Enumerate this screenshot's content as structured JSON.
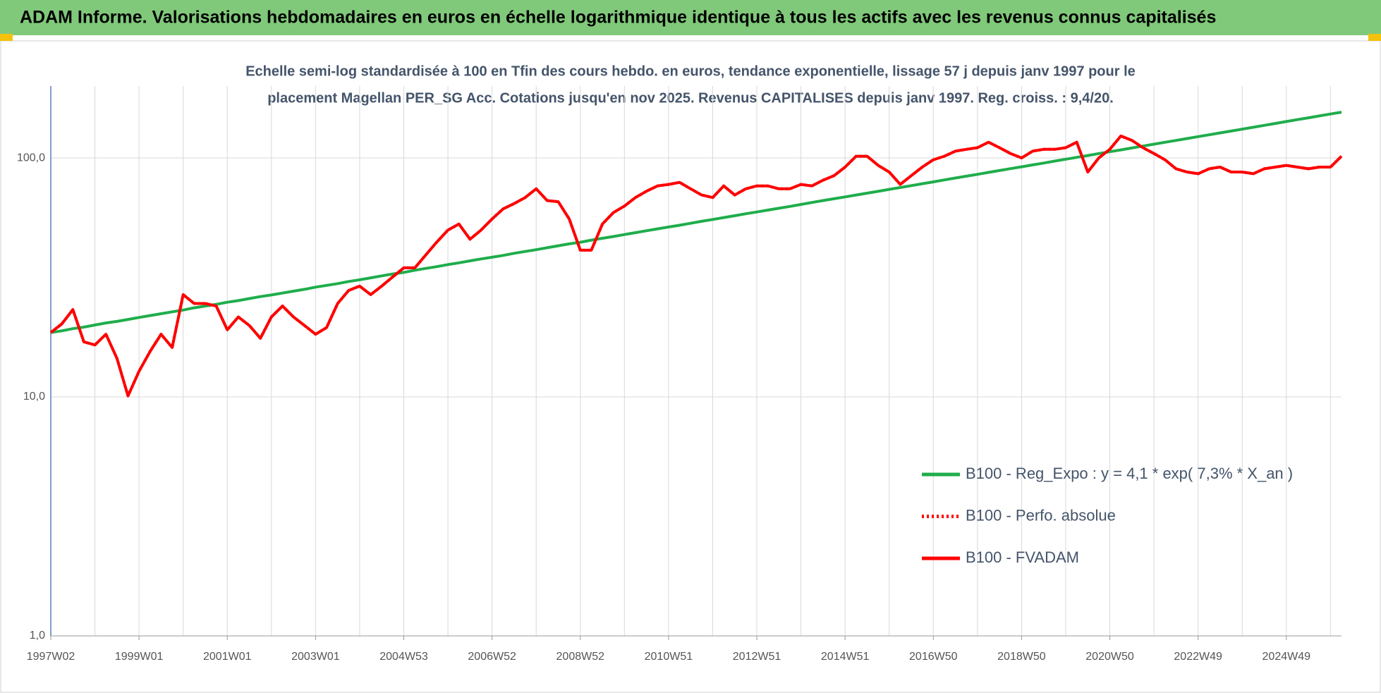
{
  "chart_data": {
    "type": "line",
    "title": "ADAM Informe. Valorisations hebdomadaires en euros en échelle logarithmique identique à tous les actifs avec les revenus connus capitalisés",
    "subtitle": [
      "Echelle semi-log standardisée à 100 en Tfin des cours hebdo. en euros, tendance exponentielle, lissage 57 j depuis janv 1997 pour le",
      "placement Magellan PER_SG Acc. Cotations jusqu'en nov 2025. Revenus CAPITALISES depuis janv 1997. Reg. croiss. : 9,4/20."
    ],
    "log_scale": true,
    "grid": true,
    "legend": "right",
    "ylim": [
      1,
      200
    ],
    "yticks": [
      {
        "value": 1,
        "label": "1,0"
      },
      {
        "value": 10,
        "label": "10,0"
      },
      {
        "value": 100,
        "label": "100,0"
      }
    ],
    "categories": [
      "1997W02",
      null,
      null,
      null,
      null,
      null,
      null,
      null,
      "1999W01",
      null,
      null,
      null,
      null,
      null,
      null,
      null,
      "2001W01",
      null,
      null,
      null,
      null,
      null,
      null,
      null,
      "2003W01",
      null,
      null,
      null,
      null,
      null,
      null,
      null,
      "2004W53",
      null,
      null,
      null,
      null,
      null,
      null,
      null,
      "2006W52",
      null,
      null,
      null,
      null,
      null,
      null,
      null,
      "2008W52",
      null,
      null,
      null,
      null,
      null,
      null,
      null,
      "2010W51",
      null,
      null,
      null,
      null,
      null,
      null,
      null,
      "2012W51",
      null,
      null,
      null,
      null,
      null,
      null,
      null,
      "2014W51",
      null,
      null,
      null,
      null,
      null,
      null,
      null,
      "2016W50",
      null,
      null,
      null,
      null,
      null,
      null,
      null,
      "2018W50",
      null,
      null,
      null,
      null,
      null,
      null,
      null,
      "2020W50",
      null,
      null,
      null,
      null,
      null,
      null,
      null,
      "2022W49",
      null,
      null,
      null,
      null,
      null,
      null,
      null,
      "2024W49",
      null,
      null,
      null,
      null,
      null
    ],
    "series": [
      {
        "name": "B100 - Reg_Expo : y = 4,1 * exp( 7,3% *  X_an )",
        "color": "#1fad4b",
        "style": "solid",
        "values": [
          18.6,
          18.9,
          19.3,
          19.6,
          20.0,
          20.4,
          20.7,
          21.1,
          21.5,
          21.9,
          22.3,
          22.7,
          23.1,
          23.6,
          24.0,
          24.4,
          24.9,
          25.3,
          25.8,
          26.3,
          26.7,
          27.2,
          27.7,
          28.2,
          28.8,
          29.3,
          29.8,
          30.4,
          30.9,
          31.5,
          32.1,
          32.7,
          33.2,
          33.9,
          34.5,
          35.1,
          35.8,
          36.4,
          37.1,
          37.8,
          38.4,
          39.1,
          39.9,
          40.6,
          41.3,
          42.1,
          42.9,
          43.7,
          44.4,
          45.3,
          46.1,
          46.9,
          47.8,
          48.7,
          49.6,
          50.5,
          51.4,
          52.3,
          53.3,
          54.3,
          55.3,
          56.3,
          57.3,
          58.4,
          59.4,
          60.5,
          61.6,
          62.7,
          63.9,
          65.1,
          66.3,
          67.5,
          68.7,
          70.0,
          71.2,
          72.5,
          73.9,
          75.2,
          76.6,
          78.0,
          79.4,
          80.9,
          82.4,
          83.9,
          85.4,
          87.0,
          88.6,
          90.2,
          91.8,
          93.5,
          95.2,
          97.0,
          98.8,
          100.6,
          102.4,
          104.3,
          106.2,
          108.1,
          110.1,
          112.1,
          114.2,
          116.3,
          118.4,
          120.6,
          122.8,
          125.0,
          127.3,
          129.6,
          132.0,
          134.4,
          136.9,
          139.4,
          142.0,
          144.6,
          147.2,
          149.9,
          152.7,
          155.5
        ]
      },
      {
        "name": "B100 - Perfo. absolue",
        "color": "#ff0000",
        "style": "dotted",
        "values": [
          18.6,
          20.2,
          23.2,
          17.0,
          16.5,
          18.3,
          14.5,
          10.1,
          12.8,
          15.5,
          18.3,
          16.1,
          26.8,
          24.6,
          24.6,
          24.0,
          19.1,
          21.6,
          19.9,
          17.6,
          21.6,
          24.0,
          21.6,
          19.9,
          18.3,
          19.5,
          24.6,
          27.9,
          29.1,
          26.8,
          29.1,
          31.8,
          34.7,
          34.7,
          39.3,
          44.5,
          49.9,
          52.9,
          45.7,
          49.9,
          55.5,
          61.2,
          64.4,
          68.3,
          74.3,
          66.3,
          65.6,
          55.5,
          41.1,
          41.1,
          52.9,
          59.1,
          62.9,
          68.3,
          72.6,
          76.4,
          77.5,
          79.0,
          74.3,
          70.0,
          68.3,
          76.4,
          70.0,
          74.3,
          76.4,
          76.4,
          74.3,
          74.3,
          77.5,
          76.4,
          80.7,
          84.3,
          91.6,
          101.7,
          101.7,
          93.1,
          87.3,
          77.5,
          84.3,
          91.6,
          98.3,
          101.7,
          106.8,
          108.7,
          110.4,
          116.4,
          110.4,
          104.3,
          100,
          106.8,
          108.7,
          108.7,
          110.4,
          116.4,
          87.3,
          100,
          108.7,
          123.6,
          118.5,
          110.4,
          104.3,
          98.3,
          90.1,
          87.3,
          85.9,
          90.1,
          91.6,
          87.3,
          87.3,
          85.9,
          90.1,
          91.6,
          93.1,
          91.6,
          90.1,
          91.6,
          91.6,
          101.7
        ]
      },
      {
        "name": "B100 - FVADAM",
        "color": "#ff0000",
        "style": "solid",
        "values": [
          18.6,
          20.2,
          23.2,
          17.0,
          16.5,
          18.3,
          14.5,
          10.1,
          12.8,
          15.5,
          18.3,
          16.1,
          26.8,
          24.6,
          24.6,
          24.0,
          19.1,
          21.6,
          19.9,
          17.6,
          21.6,
          24.0,
          21.6,
          19.9,
          18.3,
          19.5,
          24.6,
          27.9,
          29.1,
          26.8,
          29.1,
          31.8,
          34.7,
          34.7,
          39.3,
          44.5,
          49.9,
          52.9,
          45.7,
          49.9,
          55.5,
          61.2,
          64.4,
          68.3,
          74.3,
          66.3,
          65.6,
          55.5,
          41.1,
          41.1,
          52.9,
          59.1,
          62.9,
          68.3,
          72.6,
          76.4,
          77.5,
          79.0,
          74.3,
          70.0,
          68.3,
          76.4,
          70.0,
          74.3,
          76.4,
          76.4,
          74.3,
          74.3,
          77.5,
          76.4,
          80.7,
          84.3,
          91.6,
          101.7,
          101.7,
          93.1,
          87.3,
          77.5,
          84.3,
          91.6,
          98.3,
          101.7,
          106.8,
          108.7,
          110.4,
          116.4,
          110.4,
          104.3,
          100,
          106.8,
          108.7,
          108.7,
          110.4,
          116.4,
          87.3,
          100,
          108.7,
          123.6,
          118.5,
          110.4,
          104.3,
          98.3,
          90.1,
          87.3,
          85.9,
          90.1,
          91.6,
          87.3,
          87.3,
          85.9,
          90.1,
          91.6,
          93.1,
          91.6,
          90.1,
          91.6,
          91.6,
          101.7
        ]
      }
    ]
  }
}
